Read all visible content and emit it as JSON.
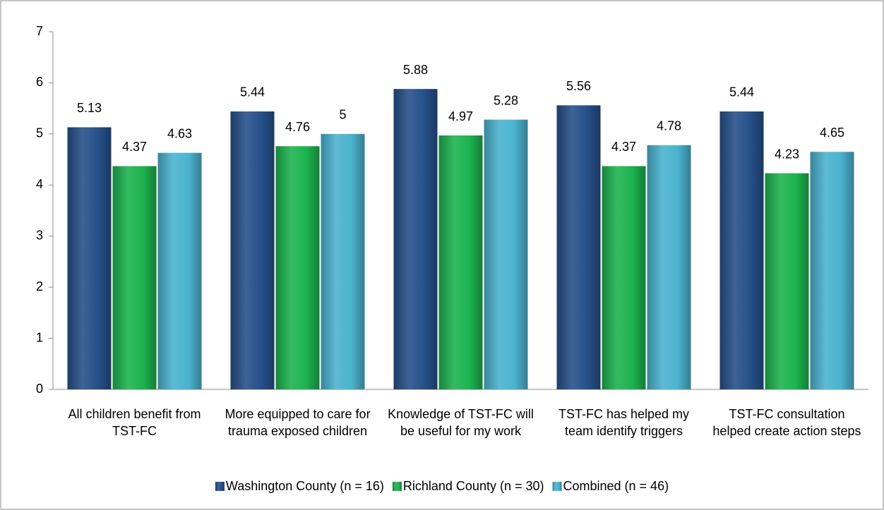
{
  "chart_data": {
    "type": "bar",
    "categories": [
      "All children benefit from TST-FC",
      "More equipped to care for trauma exposed children",
      "Knowledge of TST-FC will be useful for my work",
      "TST-FC has helped my team identify triggers",
      "TST-FC consultation helped create action steps"
    ],
    "series": [
      {
        "name": "Washington County (n = 16)",
        "color": "#26508a",
        "values": [
          5.13,
          5.44,
          5.88,
          5.56,
          5.44
        ]
      },
      {
        "name": "Richland County (n = 30)",
        "color": "#1db34f",
        "values": [
          4.37,
          4.76,
          4.97,
          4.37,
          4.23
        ]
      },
      {
        "name": "Combined (n = 46)",
        "color": "#4bb3cf",
        "values": [
          4.63,
          5,
          5.28,
          4.78,
          4.65
        ]
      }
    ],
    "ylim": [
      0,
      7
    ],
    "yticks": [
      0,
      1,
      2,
      3,
      4,
      5,
      6,
      7
    ],
    "grid": false,
    "legend": "bottom"
  }
}
